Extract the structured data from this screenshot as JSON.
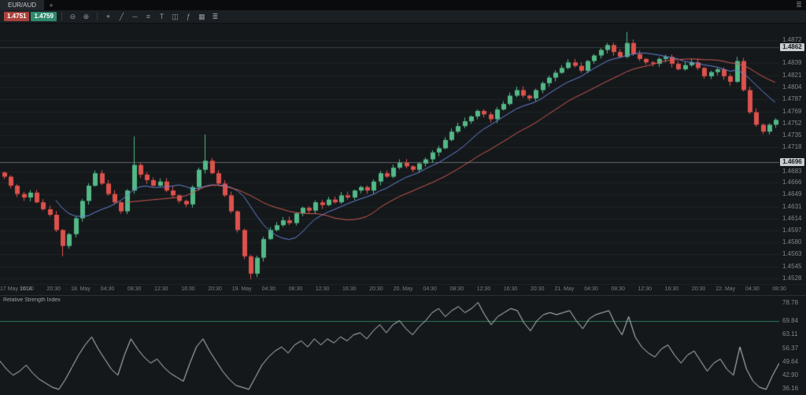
{
  "tabbar": {
    "active_tab": "EUR/AUD",
    "new_tab": "+",
    "menu_glyph": "≣"
  },
  "toolbar": {
    "bid": "1.4751",
    "ask": "1.4759",
    "bid_color": "#a8423c",
    "ask_color": "#2f8a6e",
    "icons": [
      {
        "name": "zoom-out",
        "glyph": "⊖"
      },
      {
        "name": "zoom-in",
        "glyph": "⊕"
      },
      {
        "name": "crosshair",
        "glyph": "⌖"
      },
      {
        "name": "trend-line",
        "glyph": "╱"
      },
      {
        "name": "horizontal-line",
        "glyph": "─"
      },
      {
        "name": "fibonacci",
        "glyph": "≡"
      },
      {
        "name": "text-tool",
        "glyph": "T"
      },
      {
        "name": "chart-type",
        "glyph": "◫"
      },
      {
        "name": "indicators",
        "glyph": "ƒ"
      },
      {
        "name": "grid",
        "glyph": "▦"
      },
      {
        "name": "settings",
        "glyph": "≣"
      }
    ]
  },
  "chart_data": {
    "type": "candlestick",
    "symbol": "EUR/AUD",
    "up_color": "#53b987",
    "down_color": "#de524c",
    "price_domain": [
      1.452,
      1.4896
    ],
    "price_axis_ticks": [
      "1.4872",
      "1.4839",
      "1.4821",
      "1.4804",
      "1.4787",
      "1.4769",
      "1.4752",
      "1.4735",
      "1.4718",
      "1.4683",
      "1.4666",
      "1.4649",
      "1.4631",
      "1.4614",
      "1.4597",
      "1.4580",
      "1.4563",
      "1.4545",
      "1.4528"
    ],
    "price_badges": [
      {
        "label": "1.4862",
        "value": 1.4862,
        "line_style": "faint"
      },
      {
        "label": "1.4696",
        "value": 1.4696,
        "line_style": "solid"
      }
    ],
    "moving_averages": [
      {
        "period": 9,
        "color": "#6b85d8"
      },
      {
        "period": 20,
        "color": "#cf5a52"
      }
    ],
    "closes": [
      1.4675,
      1.4662,
      1.465,
      1.4645,
      1.4652,
      1.4638,
      1.4628,
      1.462,
      1.4598,
      1.4575,
      1.4592,
      1.4615,
      1.464,
      1.4662,
      1.468,
      1.4665,
      1.465,
      1.4638,
      1.4625,
      1.4655,
      1.4692,
      1.4678,
      1.467,
      1.4662,
      1.4668,
      1.4655,
      1.4648,
      1.464,
      1.4635,
      1.466,
      1.4685,
      1.4698,
      1.468,
      1.4665,
      1.4648,
      1.4625,
      1.4598,
      1.456,
      1.4535,
      1.4558,
      1.4585,
      1.4598,
      1.4605,
      1.4612,
      1.4608,
      1.4622,
      1.463,
      1.4626,
      1.4638,
      1.4634,
      1.4642,
      1.4638,
      1.4648,
      1.4645,
      1.4655,
      1.466,
      1.4655,
      1.4668,
      1.468,
      1.4675,
      1.4688,
      1.4695,
      1.469,
      1.4685,
      1.4694,
      1.47,
      1.471,
      1.4716,
      1.4728,
      1.474,
      1.4748,
      1.4755,
      1.4762,
      1.477,
      1.4765,
      1.4758,
      1.4772,
      1.478,
      1.4792,
      1.48,
      1.4792,
      1.4788,
      1.48,
      1.481,
      1.4818,
      1.4825,
      1.4832,
      1.484,
      1.4835,
      1.4828,
      1.4842,
      1.485,
      1.4858,
      1.4865,
      1.4855,
      1.4848,
      1.4868,
      1.4852,
      1.4845,
      1.484,
      1.4838,
      1.4845,
      1.4848,
      1.4838,
      1.483,
      1.4836,
      1.484,
      1.4832,
      1.482,
      1.4826,
      1.483,
      1.482,
      1.4812,
      1.4842,
      1.48,
      1.4768,
      1.475,
      1.474,
      1.475,
      1.4757
    ],
    "spikes": [
      {
        "i": 9,
        "l": 1.456
      },
      {
        "i": 20,
        "h": 1.4733
      },
      {
        "i": 31,
        "h": 1.4736
      },
      {
        "i": 38,
        "l": 1.4527
      },
      {
        "i": 96,
        "h": 1.4884
      },
      {
        "i": 113,
        "h": 1.4848
      }
    ],
    "time_axis": [
      "17 May 2014",
      "16:30",
      "20:30",
      "18. May",
      "04:30",
      "08:30",
      "12:30",
      "16:30",
      "20:30",
      "19. May",
      "04:30",
      "08:30",
      "12:30",
      "16:30",
      "20:30",
      "20. May",
      "04:30",
      "08:30",
      "12:30",
      "16:30",
      "20:30",
      "21. May",
      "04:30",
      "08:30",
      "12:30",
      "16:30",
      "20:30",
      "22. May",
      "04:30",
      "08:30"
    ],
    "rsi": {
      "title": "Relative Strength Index",
      "line_color": "#c9ced2",
      "ob_color": "#2f7d5a",
      "overbought_line": 69.84,
      "domain": [
        33.2,
        82.3
      ],
      "axis_ticks": [
        "78.78",
        "69.84",
        "63.11",
        "56.37",
        "49.64",
        "42.90",
        "36.16"
      ],
      "values": [
        50,
        46,
        43,
        45,
        48,
        44,
        41,
        39,
        37,
        36,
        41,
        47,
        53,
        58,
        62,
        56,
        51,
        46,
        43,
        53,
        61,
        56,
        52,
        49,
        51,
        47,
        44,
        42,
        40,
        49,
        57,
        61,
        55,
        50,
        45,
        41,
        38,
        37,
        36,
        42,
        48,
        52,
        55,
        57,
        54,
        58,
        60,
        57,
        61,
        58,
        61,
        59,
        62,
        60,
        63,
        64,
        61,
        65,
        68,
        64,
        68,
        70,
        66,
        63,
        67,
        70,
        74,
        76,
        72,
        75,
        77,
        74,
        76,
        79,
        73,
        68,
        72,
        74,
        76,
        75,
        69,
        65,
        70,
        73,
        74,
        73,
        74,
        75,
        70,
        66,
        71,
        73,
        74,
        75,
        68,
        63,
        72,
        62,
        57,
        54,
        52,
        56,
        58,
        53,
        49,
        53,
        55,
        50,
        45,
        49,
        51,
        46,
        43,
        57,
        46,
        40,
        37,
        36,
        43,
        49
      ]
    }
  }
}
